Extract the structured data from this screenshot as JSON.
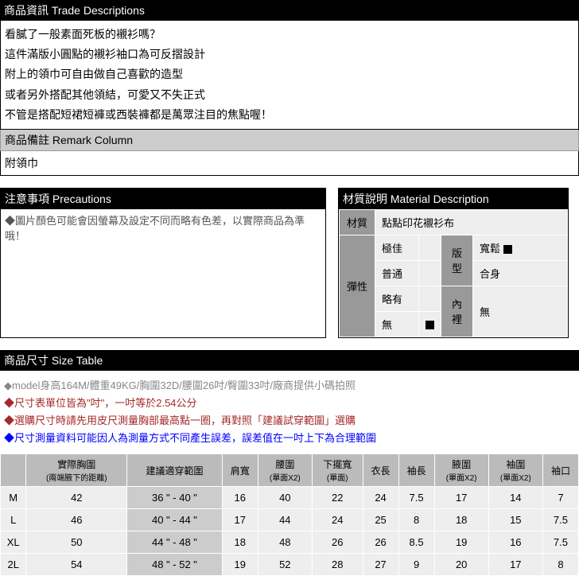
{
  "trade": {
    "header": "商品資訊 Trade Descriptions",
    "lines": [
      "看膩了一般素面死板的襯衫嗎？",
      "這件滿版小圓點的襯衫袖口為可反摺設計",
      "附上的領巾可自由做自己喜歡的造型",
      "或者另外搭配其他領結，可愛又不失正式",
      "不管是搭配短裙短褲或西裝褲都是萬眾注目的焦點喔！"
    ]
  },
  "remark": {
    "header": "商品備註 Remark Column",
    "body": "附領巾"
  },
  "precautions": {
    "header": "注意事項 Precautions",
    "body": "◆圖片顏色可能會因螢幕及設定不同而略有色差，以實際商品為準哦！"
  },
  "material": {
    "header": "材質說明 Material Description",
    "labels": {
      "mat": "材質",
      "elastic": "彈性",
      "fit": "版型",
      "lining": "內裡"
    },
    "mat_value": "點點印花襯衫布",
    "elastic_opts": {
      "o1": "極佳",
      "o2": "普通",
      "o3": "略有",
      "o4": "無"
    },
    "fit_opts": {
      "o1": "寬鬆",
      "o2": "合身"
    },
    "lining_value": "無"
  },
  "size": {
    "header": "商品尺寸 Size Table",
    "notes": {
      "n1": "◆model身高164M/體重49KG/胸圍32D/腰圍26吋/臀圍33吋/廠商提供小碼拍照",
      "n2a": "◆尺寸表單位皆為\"吋\"，一吋等於2.54公分",
      "n2b": "◆選購尺寸時請先用皮尺測量胸部最高點一圈，再對照「建議試穿範圍」選購",
      "n3": "◆尺寸測量資料可能因人為測量方式不同產生誤差，誤差值在一吋上下為合理範圍"
    },
    "columns": [
      {
        "h": "",
        "sub": ""
      },
      {
        "h": "實際胸圍",
        "sub": "(兩端腋下的距離)"
      },
      {
        "h": "建議適穿範圍",
        "sub": ""
      },
      {
        "h": "肩寬",
        "sub": ""
      },
      {
        "h": "腰圍",
        "sub": "(單面X2)"
      },
      {
        "h": "下擺寬",
        "sub": "(單面)"
      },
      {
        "h": "衣長",
        "sub": ""
      },
      {
        "h": "袖長",
        "sub": ""
      },
      {
        "h": "腋圍",
        "sub": "(單面X2)"
      },
      {
        "h": "袖圍",
        "sub": "(單面X2)"
      },
      {
        "h": "袖口",
        "sub": ""
      }
    ],
    "rows": [
      {
        "s": "M",
        "chest": "42",
        "rec": "36 \" - 40 \"",
        "shoulder": "16",
        "waist": "40",
        "hem": "22",
        "len": "24",
        "sleeve": "7.5",
        "armhole": "17",
        "sleevew": "14",
        "cuff": "7"
      },
      {
        "s": "L",
        "chest": "46",
        "rec": "40 \" - 44 \"",
        "shoulder": "17",
        "waist": "44",
        "hem": "24",
        "len": "25",
        "sleeve": "8",
        "armhole": "18",
        "sleevew": "15",
        "cuff": "7.5"
      },
      {
        "s": "XL",
        "chest": "50",
        "rec": "44 \" - 48 \"",
        "shoulder": "18",
        "waist": "48",
        "hem": "26",
        "len": "26",
        "sleeve": "8.5",
        "armhole": "19",
        "sleevew": "16",
        "cuff": "7.5"
      },
      {
        "s": "2L",
        "chest": "54",
        "rec": "48 \" - 52 \"",
        "shoulder": "19",
        "waist": "52",
        "hem": "28",
        "len": "27",
        "sleeve": "9",
        "armhole": "20",
        "sleevew": "17",
        "cuff": "8"
      }
    ]
  }
}
